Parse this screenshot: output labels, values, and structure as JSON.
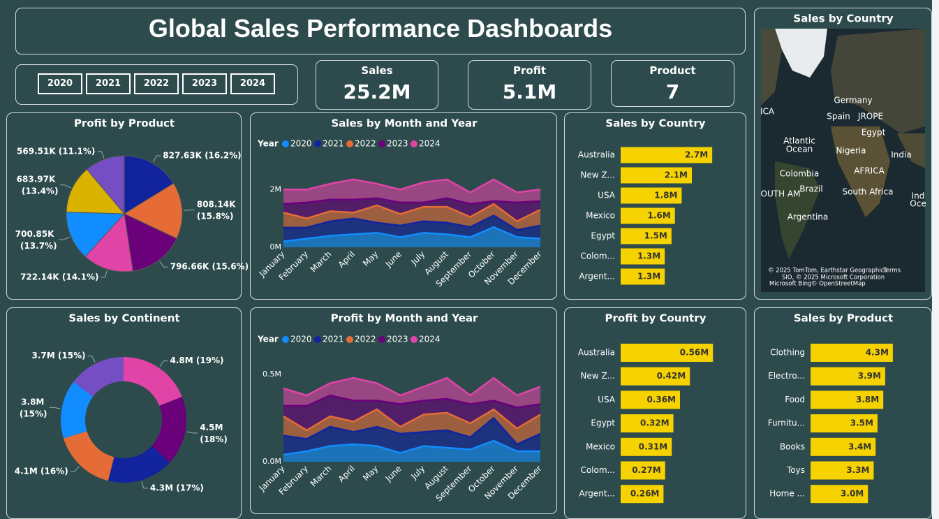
{
  "header": {
    "title": "Global Sales Performance Dashboards"
  },
  "slicer": {
    "years": [
      "2020",
      "2021",
      "2022",
      "2023",
      "2024"
    ]
  },
  "kpis": [
    {
      "label": "Sales",
      "value": "25.2M"
    },
    {
      "label": "Profit",
      "value": "5.1M"
    },
    {
      "label": "Product",
      "value": "7"
    }
  ],
  "map": {
    "title": "Sales by Country",
    "labels": [
      "Germany",
      "Spain",
      "JROPE",
      "Egypt",
      "Nigeria",
      "India",
      "AFRICA",
      "Atlantic",
      "Ocean",
      "Colombia",
      "Brazil",
      "South Africa",
      "Argentina",
      "ICA",
      "OUTH AM",
      "Ind",
      "Oce"
    ],
    "attribution": [
      "© 2025 TomTom, Earthstar Geographics",
      "Terms",
      "SIO, © 2025 Microsoft Corporation",
      "Microsoft Bing",
      "© OpenStreetMap"
    ]
  },
  "chart_data": [
    {
      "type": "pie",
      "title": "Profit by Product",
      "values": [
        827.63,
        808.14,
        796.66,
        722.14,
        700.85,
        683.97,
        569.51
      ],
      "value_labels": [
        "827.63K (16.2%)",
        "808.14K (15.8%)",
        "796.66K (15.6%)",
        "722.14K (14.1%)",
        "700.85K (13.7%)",
        "683.97K (13.4%)",
        "569.51K (11.1%)"
      ],
      "colors": [
        "#12239e",
        "#e66c37",
        "#6b007b",
        "#e044a7",
        "#118dff",
        "#d9b300",
        "#744ec2"
      ]
    },
    {
      "type": "area",
      "title": "Sales by Month and Year",
      "legend_title": "Year",
      "categories": [
        "January",
        "February",
        "March",
        "April",
        "May",
        "June",
        "July",
        "August",
        "September",
        "October",
        "November",
        "December"
      ],
      "series": [
        {
          "name": "2020",
          "color": "#118dff",
          "values": [
            0.2,
            0.3,
            0.4,
            0.45,
            0.5,
            0.35,
            0.5,
            0.45,
            0.35,
            0.7,
            0.35,
            0.3
          ]
        },
        {
          "name": "2021",
          "color": "#12239e",
          "values": [
            0.48,
            0.38,
            0.5,
            0.55,
            0.35,
            0.4,
            0.4,
            0.4,
            0.35,
            0.4,
            0.25,
            0.45
          ]
        },
        {
          "name": "2022",
          "color": "#e66c37",
          "values": [
            0.52,
            0.32,
            0.35,
            0.2,
            0.6,
            0.4,
            0.5,
            0.55,
            0.35,
            0.4,
            0.3,
            0.55
          ]
        },
        {
          "name": "2023",
          "color": "#6b007b",
          "values": [
            0.3,
            0.55,
            0.4,
            0.45,
            0.25,
            0.4,
            0.15,
            0.3,
            0.45,
            0.1,
            0.65,
            0.3
          ]
        },
        {
          "name": "2024",
          "color": "#e044a7",
          "values": [
            0.5,
            0.45,
            0.55,
            0.7,
            0.5,
            0.45,
            0.7,
            0.65,
            0.4,
            0.75,
            0.35,
            0.4
          ]
        }
      ],
      "ylim": [
        0,
        3
      ],
      "yticks": [
        {
          "value": 0,
          "label": "0M"
        },
        {
          "value": 2,
          "label": "2M"
        }
      ]
    },
    {
      "type": "hbar",
      "title": "Sales by Country",
      "categories": [
        "Australia",
        "New Z...",
        "USA",
        "Mexico",
        "Egypt",
        "Colom...",
        "Argent..."
      ],
      "values": [
        2.7,
        2.1,
        1.8,
        1.6,
        1.5,
        1.3,
        1.3
      ],
      "value_labels": [
        "2.7M",
        "2.1M",
        "1.8M",
        "1.6M",
        "1.5M",
        "1.3M",
        "1.3M"
      ],
      "color": "#f5d200",
      "xlim": [
        0,
        3.5
      ]
    },
    {
      "type": "donut",
      "title": "Sales by Continent",
      "values": [
        4.8,
        4.5,
        4.3,
        4.1,
        3.8,
        3.7
      ],
      "value_labels": [
        "4.8M (19%)",
        "4.5M (18%)",
        "4.3M (17%)",
        "4.1M (16%)",
        "3.8M (15%)",
        "3.7M (15%)"
      ],
      "colors": [
        "#e044a7",
        "#6b007b",
        "#12239e",
        "#e66c37",
        "#118dff",
        "#744ec2"
      ]
    },
    {
      "type": "area",
      "title": "Profit by Month and Year",
      "legend_title": "Year",
      "categories": [
        "January",
        "February",
        "March",
        "April",
        "May",
        "June",
        "July",
        "August",
        "September",
        "October",
        "November",
        "December"
      ],
      "series": [
        {
          "name": "2020",
          "color": "#118dff",
          "values": [
            0.04,
            0.06,
            0.09,
            0.1,
            0.09,
            0.05,
            0.09,
            0.08,
            0.07,
            0.12,
            0.06,
            0.06
          ]
        },
        {
          "name": "2021",
          "color": "#12239e",
          "values": [
            0.11,
            0.07,
            0.11,
            0.07,
            0.11,
            0.11,
            0.08,
            0.1,
            0.07,
            0.13,
            0.04,
            0.1
          ]
        },
        {
          "name": "2022",
          "color": "#e66c37",
          "values": [
            0.11,
            0.05,
            0.06,
            0.06,
            0.1,
            0.04,
            0.1,
            0.1,
            0.08,
            0.05,
            0.09,
            0.11
          ]
        },
        {
          "name": "2023",
          "color": "#6b007b",
          "values": [
            0.06,
            0.14,
            0.12,
            0.12,
            0.05,
            0.13,
            0.08,
            0.08,
            0.11,
            0.05,
            0.12,
            0.06
          ]
        },
        {
          "name": "2024",
          "color": "#e044a7",
          "values": [
            0.1,
            0.06,
            0.07,
            0.13,
            0.1,
            0.05,
            0.08,
            0.12,
            0.05,
            0.13,
            0.07,
            0.1
          ]
        }
      ],
      "ylim": [
        0,
        0.55
      ],
      "yticks": [
        {
          "value": 0,
          "label": "0.0M"
        },
        {
          "value": 0.5,
          "label": "0.5M"
        }
      ]
    },
    {
      "type": "hbar",
      "title": "Profit by Country",
      "categories": [
        "Australia",
        "New Z...",
        "USA",
        "Egypt",
        "Mexico",
        "Colom...",
        "Argent..."
      ],
      "values": [
        0.56,
        0.42,
        0.36,
        0.32,
        0.31,
        0.27,
        0.26
      ],
      "value_labels": [
        "0.56M",
        "0.42M",
        "0.36M",
        "0.32M",
        "0.31M",
        "0.27M",
        "0.26M"
      ],
      "color": "#f5d200",
      "xlim": [
        0,
        0.72
      ]
    },
    {
      "type": "hbar",
      "title": "Sales by Product",
      "categories": [
        "Clothing",
        "Electro...",
        "Food",
        "Furnitu...",
        "Books",
        "Toys",
        "Home ..."
      ],
      "values": [
        4.3,
        3.9,
        3.8,
        3.5,
        3.4,
        3.3,
        3.0
      ],
      "value_labels": [
        "4.3M",
        "3.9M",
        "3.8M",
        "3.5M",
        "3.4M",
        "3.3M",
        "3.0M"
      ],
      "color": "#f5d200",
      "xlim": [
        0,
        6.2
      ]
    }
  ]
}
